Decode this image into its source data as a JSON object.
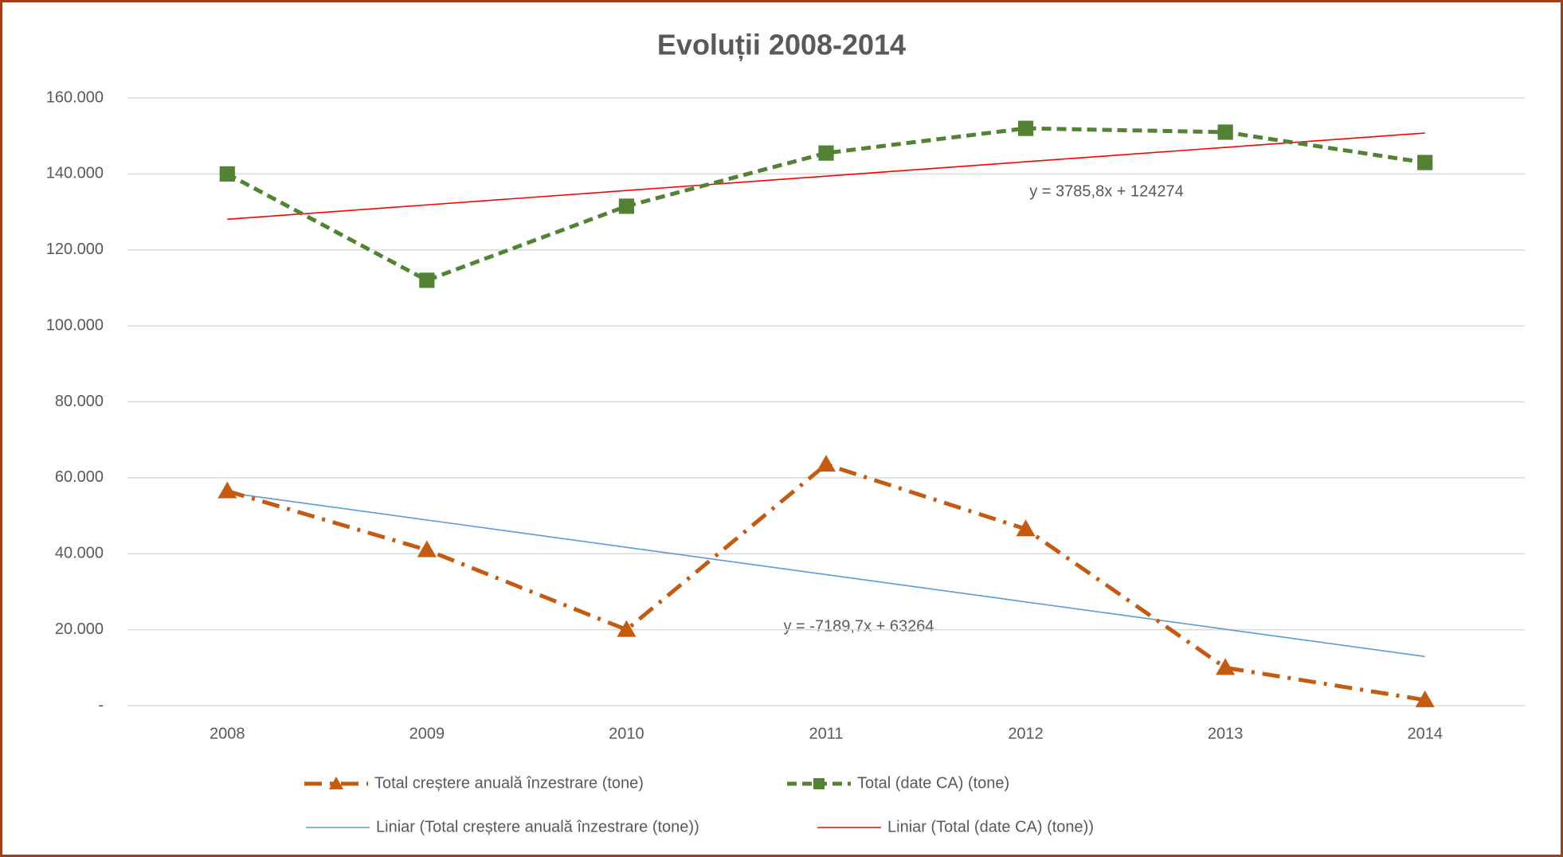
{
  "chart_data": {
    "type": "line",
    "title": "Evoluții 2008-2014",
    "categories": [
      "2008",
      "2009",
      "2010",
      "2011",
      "2012",
      "2013",
      "2014"
    ],
    "series": [
      {
        "name": "Total creștere anuală înzestrare (tone)",
        "color": "#c55a11",
        "marker": "triangle",
        "line_style": "dashdot",
        "values": [
          56500,
          41000,
          20000,
          63500,
          46500,
          10000,
          1500
        ]
      },
      {
        "name": "Total (date CA) (tone)",
        "color": "#548235",
        "marker": "square",
        "line_style": "dashed",
        "values": [
          140000,
          112000,
          131500,
          145500,
          152000,
          151000,
          143000
        ]
      },
      {
        "name": "Liniar (Total creștere anuală înzestrare (tone))",
        "color": "#5b9bd5",
        "marker": "none",
        "line_style": "solid",
        "values": [
          56074.3,
          48884.6,
          41694.9,
          34505.2,
          27315.5,
          20125.8,
          12936.1
        ]
      },
      {
        "name": "Liniar (Total (date CA) (tone))",
        "color": "#ff0000",
        "marker": "none",
        "line_style": "solid",
        "values": [
          128059.8,
          131845.6,
          135631.4,
          139417.2,
          143203,
          146988.8,
          150774.6
        ]
      }
    ],
    "annotations": [
      "y = 3785,8x + 124274",
      "y = -7189,7x + 63264"
    ],
    "ylim": [
      0,
      160000
    ],
    "yticks": [
      {
        "value": 0,
        "label": "-"
      },
      {
        "value": 20000,
        "label": "20.000"
      },
      {
        "value": 40000,
        "label": "40.000"
      },
      {
        "value": 60000,
        "label": "60.000"
      },
      {
        "value": 80000,
        "label": "80.000"
      },
      {
        "value": 100000,
        "label": "100.000"
      },
      {
        "value": 120000,
        "label": "120.000"
      },
      {
        "value": 140000,
        "label": "140.000"
      },
      {
        "value": 160000,
        "label": "160.000"
      }
    ],
    "grid": true,
    "legend": "bottom"
  }
}
